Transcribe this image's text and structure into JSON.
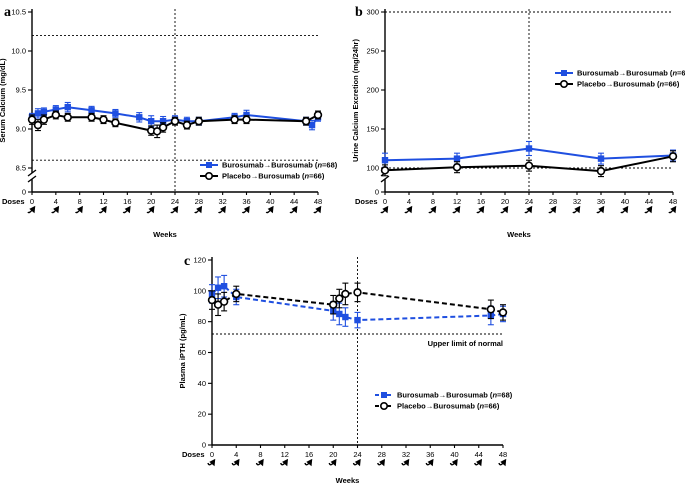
{
  "colors": {
    "burosumab": "#1f4fe0",
    "placebo": "#000000"
  },
  "shared": {
    "doses_label": "Doses",
    "x_axis_label": "Weeks",
    "x_ticks": [
      0,
      4,
      8,
      12,
      16,
      20,
      24,
      28,
      32,
      36,
      40,
      44,
      48
    ],
    "dose_weeks": [
      0,
      4,
      8,
      12,
      16,
      20,
      24,
      28,
      32,
      36,
      40,
      44,
      48
    ],
    "dose_icon": "curved-up-arrow-icon",
    "legend": {
      "burosumab": {
        "prefix": "Burosumab→Burosumab (",
        "n": "n",
        "suffix": "=68)"
      },
      "placebo": {
        "prefix": "Placebo→Burosumab (",
        "n": "n",
        "suffix": "=66)"
      }
    }
  },
  "chart_data": [
    {
      "panel": "a",
      "type": "line",
      "ylabel": "Serum Calcium (mg/dL)",
      "xlabel": "Weeks",
      "xlim": [
        0,
        48
      ],
      "ylim": [
        8.5,
        10.5
      ],
      "yticks": [
        8.5,
        9.0,
        9.5,
        10.0,
        10.5
      ],
      "ytick_labels": [
        "8.5",
        "9.0",
        "9.5",
        "10.0",
        "10.5"
      ],
      "y_axis_break": true,
      "y_zero_label": "0",
      "reference_lines_y": [
        10.2,
        8.6
      ],
      "reference_line_x": 24,
      "legend_position": "bottom-right",
      "series": [
        {
          "key": "burosumab",
          "marker": "square",
          "x": [
            0,
            1,
            2,
            4,
            6,
            10,
            14,
            18,
            20,
            22,
            24,
            26,
            28,
            34,
            36,
            46,
            47,
            48
          ],
          "y": [
            9.15,
            9.2,
            9.22,
            9.25,
            9.28,
            9.24,
            9.2,
            9.15,
            9.1,
            9.1,
            9.12,
            9.1,
            9.1,
            9.15,
            9.18,
            9.1,
            9.05,
            9.15
          ],
          "err": [
            0.05,
            0.06,
            0.05,
            0.05,
            0.06,
            0.05,
            0.05,
            0.06,
            0.07,
            0.06,
            0.05,
            0.05,
            0.05,
            0.05,
            0.06,
            0.05,
            0.06,
            0.05
          ]
        },
        {
          "key": "placebo",
          "marker": "circle",
          "x": [
            0,
            1,
            2,
            4,
            6,
            10,
            12,
            14,
            20,
            21,
            22,
            24,
            26,
            28,
            34,
            36,
            46,
            48
          ],
          "y": [
            9.12,
            9.05,
            9.12,
            9.18,
            9.15,
            9.15,
            9.12,
            9.08,
            8.98,
            8.97,
            9.02,
            9.1,
            9.05,
            9.1,
            9.12,
            9.12,
            9.1,
            9.18
          ],
          "err": [
            0.06,
            0.07,
            0.06,
            0.05,
            0.05,
            0.05,
            0.05,
            0.05,
            0.06,
            0.08,
            0.06,
            0.05,
            0.05,
            0.05,
            0.05,
            0.05,
            0.05,
            0.05
          ]
        }
      ]
    },
    {
      "panel": "b",
      "type": "line",
      "ylabel": "Urine Calcium Excretion (mg/24hr)",
      "xlabel": "Weeks",
      "xlim": [
        0,
        48
      ],
      "ylim": [
        100,
        300
      ],
      "yticks": [
        100,
        150,
        200,
        250,
        300
      ],
      "ytick_labels": [
        "100",
        "150",
        "200",
        "250",
        "300"
      ],
      "y_axis_break": true,
      "y_zero_label": "0",
      "reference_lines_y": [
        300,
        100
      ],
      "reference_line_x": 24,
      "legend_position": "top-right",
      "series": [
        {
          "key": "burosumab",
          "marker": "square",
          "x": [
            0,
            12,
            24,
            36,
            48
          ],
          "y": [
            110,
            112,
            125,
            112,
            116
          ],
          "err": [
            9,
            7,
            9,
            7,
            7
          ]
        },
        {
          "key": "placebo",
          "marker": "circle",
          "x": [
            0,
            12,
            24,
            36,
            48
          ],
          "y": [
            97,
            101,
            103,
            96,
            115
          ],
          "err": [
            7,
            7,
            7,
            7,
            7
          ]
        }
      ]
    },
    {
      "panel": "c",
      "type": "line",
      "ylabel": "Plasma iPTH (pg/mL)",
      "xlabel": "Weeks",
      "xlim": [
        0,
        48
      ],
      "ylim": [
        0,
        120
      ],
      "yticks": [
        0,
        20,
        40,
        60,
        80,
        100,
        120
      ],
      "ytick_labels": [
        "0",
        "20",
        "40",
        "60",
        "80",
        "100",
        "120"
      ],
      "y_axis_break": false,
      "reference_lines_y": [
        72
      ],
      "reference_line_x": 24,
      "annotation": "Upper limit of normal",
      "legend_position": "bottom-right",
      "series": [
        {
          "key": "burosumab",
          "marker": "square",
          "dashed": true,
          "x": [
            0,
            1,
            2,
            4,
            20,
            21,
            22,
            24,
            46,
            48
          ],
          "y": [
            98,
            102,
            103,
            96,
            87,
            85,
            83,
            81,
            84,
            85
          ],
          "err": [
            6,
            7,
            7,
            5,
            6,
            7,
            6,
            5,
            6,
            5
          ]
        },
        {
          "key": "placebo",
          "marker": "circle",
          "dashed": true,
          "x": [
            0,
            1,
            2,
            4,
            20,
            21,
            22,
            24,
            46,
            48
          ],
          "y": [
            94,
            91,
            93,
            98,
            91,
            95,
            98,
            99,
            88,
            86
          ],
          "err": [
            6,
            7,
            6,
            5,
            6,
            6,
            7,
            6,
            6,
            5
          ]
        }
      ]
    }
  ]
}
